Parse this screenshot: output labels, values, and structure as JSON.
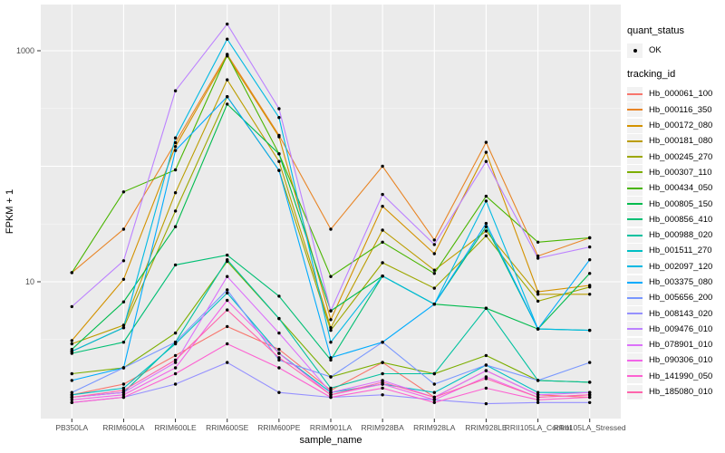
{
  "chart_data": {
    "type": "line",
    "title": "",
    "xlabel": "sample_name",
    "ylabel": "FPKM + 1",
    "y_scale": "log10",
    "ylim": [
      0.65,
      2500
    ],
    "y_tick_labels": [
      "10",
      "1000"
    ],
    "y_ticks": [
      10,
      1000
    ],
    "y_gridlines_major": [
      10,
      100,
      1000
    ],
    "y_gridlines_minor": [
      3.162,
      31.62,
      316.2
    ],
    "grid": true,
    "legend_position": "right",
    "panel_bg": "#EBEBEB",
    "grid_color": "#FFFFFF",
    "point_color": "#000000",
    "tick_label_color": "#4D4D4D",
    "categories": [
      "PB350LA",
      "RRIM600LA",
      "RRIM600LE",
      "RRIM600SE",
      "RRIM600PE",
      "RRIM901LA",
      "RRIM928BA",
      "RRIM928LA",
      "RRIM928LE",
      "RRII105LA_Control",
      "RRII105LA_Stressed"
    ],
    "series": [
      {
        "name": "Hb_000061_100",
        "color": "#F8766D",
        "values": [
          1.05,
          1.3,
          2.3,
          4.1,
          2.6,
          1.15,
          2.0,
          1.0,
          1.7,
          1.05,
          1.0
        ]
      },
      {
        "name": "Hb_000116_350",
        "color": "#E88526",
        "values": [
          12,
          28.5,
          160,
          930,
          185,
          28.5,
          100,
          23,
          161,
          16.7,
          24
        ]
      },
      {
        "name": "Hb_000172_080",
        "color": "#D39200",
        "values": [
          3.1,
          10.5,
          148,
          900,
          180,
          4.7,
          45,
          17.5,
          132,
          8.2,
          9.3
        ]
      },
      {
        "name": "Hb_000181_080",
        "color": "#BB9D00",
        "values": [
          2.9,
          4.2,
          59,
          560,
          110,
          4.0,
          28,
          12.6,
          27.5,
          7.8,
          7.8
        ]
      },
      {
        "name": "Hb_000245_270",
        "color": "#9DA700",
        "values": [
          2.5,
          4.0,
          41,
          400,
          92,
          3.8,
          14.6,
          8.8,
          25,
          6.8,
          9.0
        ]
      },
      {
        "name": "Hb_000307_110",
        "color": "#7CAE00",
        "values": [
          1.6,
          1.8,
          3.6,
          15,
          4.8,
          1.5,
          2.0,
          1.6,
          2.3,
          1.4,
          1.35
        ]
      },
      {
        "name": "Hb_000434_050",
        "color": "#49B500",
        "values": [
          12,
          60,
          93,
          920,
          128,
          11.1,
          22,
          11.8,
          55,
          22,
          24
        ]
      },
      {
        "name": "Hb_000805_150",
        "color": "#00BB4E",
        "values": [
          2.6,
          6.7,
          30,
          345,
          128,
          5.6,
          11.2,
          6.4,
          5.9,
          3.9,
          11.8
        ]
      },
      {
        "name": "Hb_000856_410",
        "color": "#00BF74",
        "values": [
          2.4,
          3.0,
          14,
          17,
          7.5,
          2.1,
          11.2,
          6.4,
          30,
          3.9,
          3.8
        ]
      },
      {
        "name": "Hb_000988_020",
        "color": "#00C19F",
        "values": [
          1.0,
          1.1,
          3.0,
          15.5,
          4.8,
          1.2,
          1.6,
          1.6,
          5.9,
          1.4,
          1.35
        ]
      },
      {
        "name": "Hb_001511_270",
        "color": "#00BFC4",
        "values": [
          1.05,
          1.2,
          2.9,
          8.0,
          2.4,
          1.1,
          1.3,
          1.1,
          1.9,
          1.1,
          1.1
        ]
      },
      {
        "name": "Hb_002097_120",
        "color": "#00B9E3",
        "values": [
          2.5,
          4.0,
          176,
          1260,
          264,
          3.0,
          11.2,
          6.4,
          50,
          3.9,
          3.8
        ]
      },
      {
        "name": "Hb_003375_080",
        "color": "#00ABFD",
        "values": [
          1.4,
          1.8,
          137,
          400,
          92,
          2.2,
          3.0,
          6.4,
          32,
          3.9,
          15.5
        ]
      },
      {
        "name": "Hb_005656_200",
        "color": "#7997FF",
        "values": [
          1.1,
          1.8,
          3.0,
          8.5,
          2.1,
          1.5,
          3.0,
          1.3,
          1.9,
          1.4,
          2.0
        ]
      },
      {
        "name": "Hb_008143_020",
        "color": "#9590FF",
        "values": [
          0.9,
          1.0,
          1.3,
          2.0,
          1.1,
          1.0,
          1.05,
          0.95,
          0.88,
          0.9,
          0.9
        ]
      },
      {
        "name": "Hb_009476_010",
        "color": "#BC81FF",
        "values": [
          6.1,
          15.2,
          450,
          1700,
          315,
          5.6,
          57,
          21,
          110,
          16,
          20
        ]
      },
      {
        "name": "Hb_078901_010",
        "color": "#DC71FA",
        "values": [
          1.0,
          1.1,
          2.0,
          11.1,
          3.6,
          1.1,
          1.4,
          1.0,
          1.7,
          1.05,
          1.1
        ]
      },
      {
        "name": "Hb_090306_010",
        "color": "#F265E8",
        "values": [
          0.95,
          1.05,
          1.8,
          6.9,
          2.4,
          1.05,
          1.3,
          0.95,
          1.5,
          1.0,
          1.05
        ]
      },
      {
        "name": "Hb_141990_050",
        "color": "#FD61D1",
        "values": [
          0.9,
          1.0,
          1.6,
          2.9,
          1.8,
          1.0,
          1.2,
          0.9,
          1.2,
          0.95,
          1.0
        ]
      },
      {
        "name": "Hb_185080_010",
        "color": "#FF65AC",
        "values": [
          1.0,
          1.15,
          2.1,
          5.7,
          2.2,
          1.05,
          1.35,
          1.0,
          1.45,
          1.0,
          1.05
        ]
      }
    ],
    "legend": {
      "quant_title": "quant_status",
      "quant_items": [
        "OK"
      ],
      "tracking_title": "tracking_id"
    }
  }
}
